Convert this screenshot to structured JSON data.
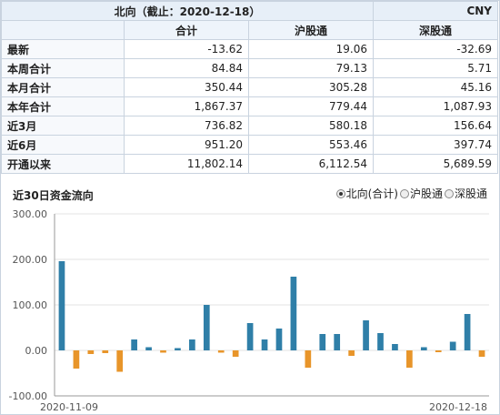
{
  "table": {
    "title": "北向（截止：2020-12-18）",
    "currency": "CNY",
    "columns": [
      "合计",
      "沪股通",
      "深股通"
    ],
    "rows": [
      {
        "label": "最新",
        "values": [
          "-13.62",
          "19.06",
          "-32.69"
        ]
      },
      {
        "label": "本周合计",
        "values": [
          "84.84",
          "79.13",
          "5.71"
        ]
      },
      {
        "label": "本月合计",
        "values": [
          "350.44",
          "305.28",
          "45.16"
        ]
      },
      {
        "label": "本年合计",
        "values": [
          "1,867.37",
          "779.44",
          "1,087.93"
        ]
      },
      {
        "label": "近3月",
        "values": [
          "736.82",
          "580.18",
          "156.64"
        ]
      },
      {
        "label": "近6月",
        "values": [
          "951.20",
          "553.46",
          "397.74"
        ]
      },
      {
        "label": "开通以来",
        "values": [
          "11,802.14",
          "6,112.54",
          "5,689.59"
        ]
      }
    ]
  },
  "chart_title": "近30日资金流向",
  "radio_options": [
    {
      "label": "北向(合计)",
      "selected": true
    },
    {
      "label": "沪股通",
      "selected": false
    },
    {
      "label": "深股通",
      "selected": false
    }
  ],
  "chart_data": {
    "type": "bar",
    "ylim": [
      -100,
      300
    ],
    "yticks": [
      "300.00",
      "200.00",
      "100.00",
      "0.00",
      "-100.00"
    ],
    "x_start_label": "2020-11-09",
    "x_end_label": "2020-12-18",
    "positive_color": "#2f7fa8",
    "negative_color": "#e8952a",
    "values": [
      196,
      -40,
      -8,
      -6,
      -47,
      24,
      7,
      -5,
      5,
      24,
      100,
      -5,
      -14,
      60,
      24,
      48,
      162,
      -38,
      36,
      36,
      -12,
      66,
      38,
      14,
      -38,
      7,
      -4,
      19,
      80,
      -14
    ]
  }
}
